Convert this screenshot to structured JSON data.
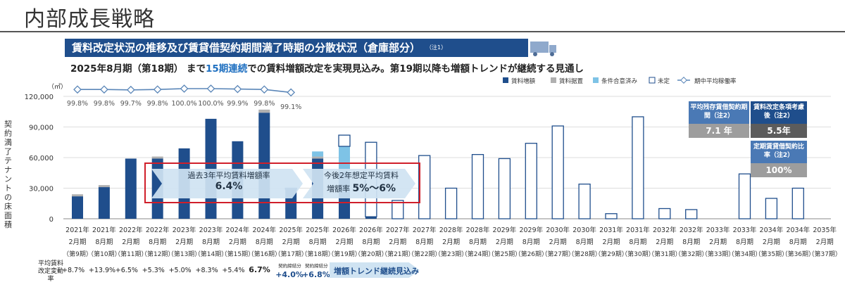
{
  "page_title": "内部成長戦略",
  "banner": {
    "title": "賃料改定状況の推移及び賃貸借契約期間満了時期の分散状況（倉庫部分）",
    "note": "（注1）"
  },
  "subtitle": {
    "part1": "2025年8月期（第18期） まで",
    "highlight": "15期連続",
    "part2": "での賃料増額改定を実現見込み。第19期以降も増額トレンドが継続する見通し"
  },
  "y_unit": "（㎡）",
  "y_axis_label": "契約満了テナントの床面積",
  "legend": [
    "賃料増額",
    "賃料据置",
    "条件合意済み",
    "未定",
    "期中平均稼働率"
  ],
  "colors": {
    "increase": "#1f4e8c",
    "flat": "#b0b0b0",
    "agreed": "#7ec3e6",
    "undecided": "#ffffff",
    "occupancy": "#5a86b8"
  },
  "kpis": {
    "remaining_label": "平均残存賃借契約期間（注2）",
    "remaining_value": "7.1 年",
    "considered_label": "賃料改定条項考慮後（注2）",
    "considered_value": "5.5年",
    "fixed_label": "定期賃貸借契約比率（注2）",
    "fixed_value": "100%"
  },
  "arrows": {
    "past_label": "過去3年平均賃料増額率",
    "past_value": "6.4%",
    "future_label": "今後2年想定平均賃料",
    "future_label2": "増額率",
    "future_value": "5%〜6%"
  },
  "rate_row": {
    "label": "平均賃料改定変動率",
    "values": [
      "+8.7%",
      "+13.9%",
      "+6.5%",
      "+5.3%",
      "+5.0%",
      "+8.3%",
      "+5.4%",
      "6.7%",
      "+4.0%",
      "+6.8%"
    ],
    "tag": "契約締結分",
    "trend": "増額トレンド継続見込み"
  },
  "chart_data": {
    "type": "bar",
    "categories": [
      "2021年2月期",
      "2021年8月期",
      "2022年2月期",
      "2022年8月期",
      "2023年2月期",
      "2023年8月期",
      "2024年2月期",
      "2024年8月期",
      "2025年2月期",
      "2025年8月期",
      "2026年2月期",
      "2026年8月期",
      "2027年2月期",
      "2027年8月期",
      "2028年2月期",
      "2028年8月期",
      "2029年2月期",
      "2029年8月期",
      "2030年2月期",
      "2030年8月期",
      "2031年2月期",
      "2031年8月期",
      "2032年2月期",
      "2032年8月期",
      "2033年2月期",
      "2033年8月期",
      "2034年2月期",
      "2034年8月期",
      "2035年2月期"
    ],
    "x_year": [
      "2021年",
      "2021年",
      "2022年",
      "2022年",
      "2023年",
      "2023年",
      "2024年",
      "2024年",
      "2025年",
      "2025年",
      "2026年",
      "2026年",
      "2027年",
      "2027年",
      "2028年",
      "2028年",
      "2029年",
      "2029年",
      "2030年",
      "2030年",
      "2031年",
      "2031年",
      "2032年",
      "2032年",
      "2033年",
      "2033年",
      "2034年",
      "2034年",
      "2035年"
    ],
    "x_month": [
      "2月期",
      "8月期",
      "2月期",
      "8月期",
      "2月期",
      "8月期",
      "2月期",
      "8月期",
      "2月期",
      "8月期",
      "2月期",
      "8月期",
      "2月期",
      "8月期",
      "2月期",
      "8月期",
      "2月期",
      "8月期",
      "2月期",
      "8月期",
      "2月期",
      "8月期",
      "2月期",
      "8月期",
      "2月期",
      "8月期",
      "2月期",
      "8月期",
      "2月期"
    ],
    "x_period": [
      "（第9期）",
      "（第10期）",
      "（第11期）",
      "（第12期）",
      "（第13期）",
      "（第14期）",
      "（第15期）",
      "（第16期）",
      "（第17期）",
      "（第18期）",
      "（第19期）",
      "（第20期）",
      "（第21期）",
      "（第22期）",
      "（第23期）",
      "（第24期）",
      "（第25期）",
      "（第26期）",
      "（第27期）",
      "（第28期）",
      "（第29期）",
      "（第30期）",
      "（第31期）",
      "（第32期）",
      "（第33期）",
      "（第34期）",
      "（第35期）",
      "（第36期）",
      "（第37期）"
    ],
    "series": [
      {
        "name": "賃料増額",
        "values": [
          22000,
          31000,
          59000,
          59000,
          69000,
          98000,
          76000,
          104000,
          29000,
          59000,
          46000,
          2000,
          0,
          0,
          0,
          0,
          0,
          0,
          0,
          0,
          0,
          0,
          0,
          0,
          0,
          0,
          0,
          0,
          0
        ]
      },
      {
        "name": "賃料据置",
        "values": [
          2000,
          2000,
          0,
          2000,
          0,
          0,
          0,
          3000,
          0,
          2000,
          0,
          0,
          0,
          0,
          0,
          0,
          0,
          0,
          0,
          0,
          0,
          0,
          0,
          0,
          0,
          0,
          0,
          0,
          0
        ]
      },
      {
        "name": "条件合意済み",
        "values": [
          0,
          0,
          0,
          0,
          0,
          0,
          0,
          0,
          0,
          5000,
          25000,
          0,
          0,
          0,
          0,
          0,
          0,
          0,
          0,
          0,
          0,
          0,
          0,
          0,
          0,
          0,
          0,
          0,
          0
        ]
      },
      {
        "name": "未定",
        "values": [
          0,
          0,
          0,
          0,
          0,
          0,
          0,
          0,
          1000,
          0,
          11000,
          73000,
          18000,
          62000,
          30000,
          63000,
          59000,
          74000,
          91000,
          34000,
          5000,
          100000,
          10000,
          9000,
          0,
          44000,
          20000,
          30000,
          0
        ]
      }
    ],
    "occupancy": {
      "name": "期中平均稼働率",
      "labels": [
        "99.8%",
        "99.8%",
        "99.7%",
        "99.8%",
        "100.0%",
        "100.0%",
        "99.9%",
        "99.8%",
        "99.1%"
      ],
      "values": [
        99.8,
        99.8,
        99.7,
        99.8,
        100.0,
        100.0,
        99.9,
        99.8,
        99.1
      ]
    },
    "yticks": [
      "0",
      "30,000",
      "60,000",
      "90,000",
      "120,000"
    ],
    "ylim": [
      0,
      120000
    ]
  }
}
